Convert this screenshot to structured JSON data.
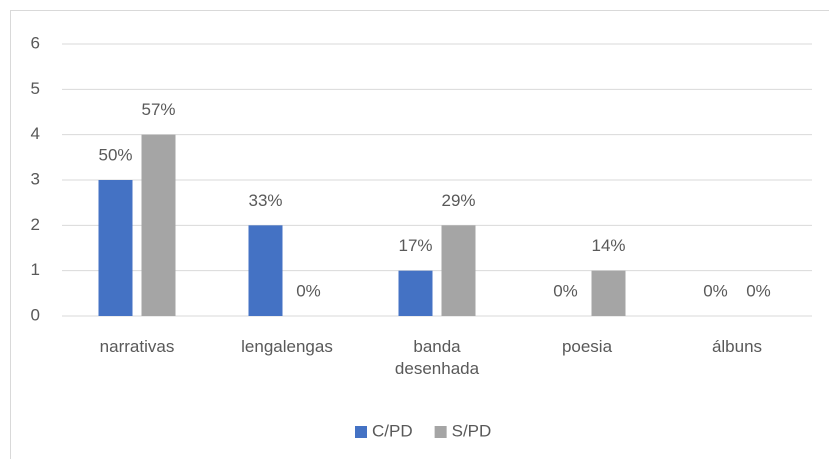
{
  "chart_data": {
    "type": "bar",
    "categories": [
      "narrativas",
      "lengalengas",
      "banda desenhada",
      "poesia",
      "álbuns"
    ],
    "series": [
      {
        "name": "C/PD",
        "color": "#4472c4",
        "values": [
          3,
          2,
          1,
          0,
          0
        ],
        "share_labels": [
          "50%",
          "33%",
          "17%",
          "0%",
          "0%"
        ]
      },
      {
        "name": "S/PD",
        "color": "#a5a5a5",
        "values": [
          4,
          0,
          2,
          1,
          0
        ],
        "share_labels": [
          "57%",
          "0%",
          "29%",
          "14%",
          "0%"
        ]
      }
    ],
    "ylim": [
      0,
      6
    ],
    "yticks": [
      0,
      1,
      2,
      3,
      4,
      5,
      6
    ],
    "grid": true,
    "legend": "bottom"
  }
}
